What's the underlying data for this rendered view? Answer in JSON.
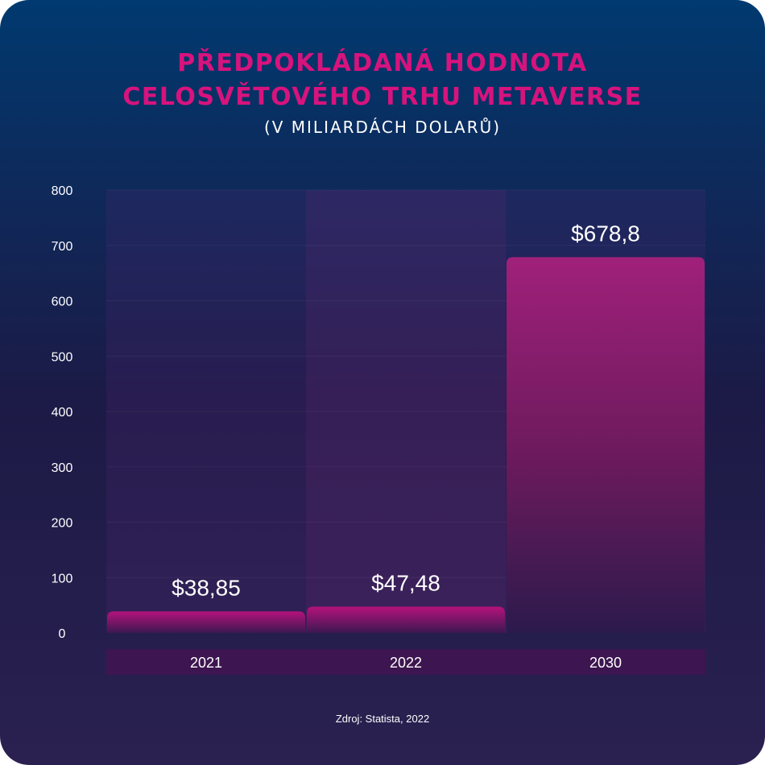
{
  "chart_data": {
    "type": "bar",
    "title_lines": [
      "PŘEDPOKLÁDANÁ HODNOTA",
      "CELOSVĚTOVÉHO TRHU METAVERSE"
    ],
    "subtitle": "(V MILIARDÁCH DOLARŮ)",
    "categories": [
      "2021",
      "2022",
      "2030"
    ],
    "values": [
      38.85,
      47.48,
      678.8
    ],
    "value_labels": [
      "$38,85",
      "$47,48",
      "$678,8"
    ],
    "ylim": [
      0,
      800
    ],
    "yticks": [
      0,
      100,
      200,
      300,
      400,
      500,
      600,
      700,
      800
    ],
    "xlabel": "",
    "ylabel": "",
    "grid": true,
    "bar_color": "#d7137d"
  },
  "source": "Zdroj: Statista, 2022"
}
